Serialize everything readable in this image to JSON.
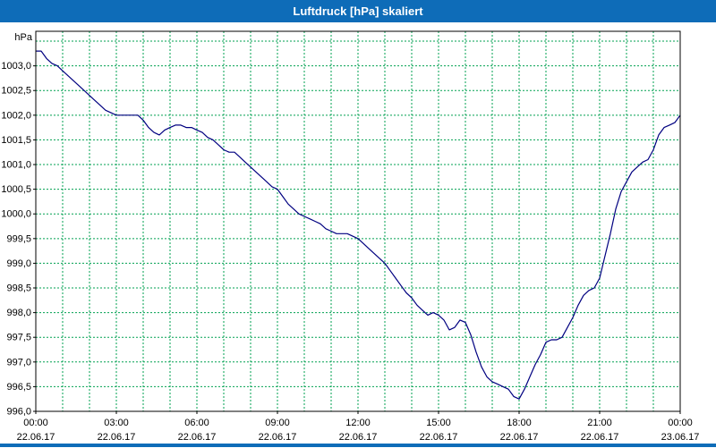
{
  "window": {
    "title": "Luftdruck [hPa] skaliert"
  },
  "chart_data": {
    "type": "line",
    "title": "Luftdruck [hPa] skaliert",
    "ylabel": "hPa",
    "xlabel": "",
    "xlim": [
      0,
      24
    ],
    "ylim": [
      996.0,
      1003.7
    ],
    "grid": true,
    "legend": "none",
    "y_grid_step": 0.5,
    "x_grid_step_hours": 1,
    "colors": {
      "titlebar": "#0e6cb8",
      "grid": "#00a050",
      "line": "#000080",
      "frame": "#000000",
      "background": "#ffffff",
      "label_text": "#000000"
    },
    "y_ticks": {
      "values": [
        1003.0,
        1002.5,
        1002.0,
        1001.5,
        1001.0,
        1000.5,
        1000.0,
        999.5,
        999.0,
        998.5,
        998.0,
        997.5,
        997.0,
        996.5,
        996.0
      ],
      "labels": [
        "1003,0",
        "1002,5",
        "1002,0",
        "1001,5",
        "1001,0",
        "1000,5",
        "1000,0",
        "999,5",
        "999,0",
        "998,5",
        "998,0",
        "997,5",
        "997,0",
        "996,5",
        "996,0"
      ]
    },
    "x_ticks": {
      "hours": [
        0,
        3,
        6,
        9,
        12,
        15,
        18,
        21,
        24
      ],
      "times": [
        "00:00",
        "03:00",
        "06:00",
        "09:00",
        "12:00",
        "15:00",
        "18:00",
        "21:00",
        "00:00"
      ],
      "dates": [
        "22.06.17",
        "22.06.17",
        "22.06.17",
        "22.06.17",
        "22.06.17",
        "22.06.17",
        "22.06.17",
        "22.06.17",
        "23.06.17"
      ]
    },
    "series": [
      {
        "name": "Luftdruck [hPa]",
        "x": [
          0.0,
          0.2,
          0.4,
          0.6,
          0.8,
          1.0,
          1.2,
          1.4,
          1.6,
          1.8,
          2.0,
          2.2,
          2.4,
          2.6,
          2.8,
          3.0,
          3.2,
          3.4,
          3.6,
          3.8,
          4.0,
          4.2,
          4.4,
          4.6,
          4.8,
          5.0,
          5.2,
          5.4,
          5.6,
          5.8,
          6.0,
          6.2,
          6.4,
          6.6,
          6.8,
          7.0,
          7.2,
          7.4,
          7.6,
          7.8,
          8.0,
          8.2,
          8.4,
          8.6,
          8.8,
          9.0,
          9.2,
          9.4,
          9.6,
          9.8,
          10.0,
          10.2,
          10.4,
          10.6,
          10.8,
          11.0,
          11.2,
          11.4,
          11.6,
          11.8,
          12.0,
          12.2,
          12.4,
          12.6,
          12.8,
          13.0,
          13.2,
          13.4,
          13.6,
          13.8,
          14.0,
          14.2,
          14.4,
          14.6,
          14.8,
          15.0,
          15.2,
          15.4,
          15.6,
          15.8,
          16.0,
          16.2,
          16.4,
          16.6,
          16.8,
          17.0,
          17.2,
          17.4,
          17.6,
          17.8,
          18.0,
          18.2,
          18.4,
          18.6,
          18.8,
          19.0,
          19.2,
          19.4,
          19.6,
          19.8,
          20.0,
          20.2,
          20.4,
          20.6,
          20.8,
          21.0,
          21.2,
          21.4,
          21.6,
          21.8,
          22.0,
          22.2,
          22.4,
          22.6,
          22.8,
          23.0,
          23.2,
          23.4,
          23.6,
          23.8,
          24.0
        ],
        "y": [
          1003.3,
          1003.3,
          1003.15,
          1003.05,
          1003.0,
          1002.9,
          1002.8,
          1002.7,
          1002.6,
          1002.5,
          1002.4,
          1002.3,
          1002.2,
          1002.1,
          1002.05,
          1002.0,
          1002.0,
          1002.0,
          1002.0,
          1002.0,
          1001.9,
          1001.75,
          1001.65,
          1001.6,
          1001.7,
          1001.75,
          1001.8,
          1001.8,
          1001.75,
          1001.75,
          1001.7,
          1001.65,
          1001.55,
          1001.5,
          1001.4,
          1001.3,
          1001.25,
          1001.25,
          1001.15,
          1001.05,
          1000.95,
          1000.85,
          1000.75,
          1000.65,
          1000.55,
          1000.5,
          1000.35,
          1000.2,
          1000.1,
          1000.0,
          999.95,
          999.9,
          999.85,
          999.8,
          999.7,
          999.65,
          999.6,
          999.6,
          999.6,
          999.55,
          999.5,
          999.4,
          999.3,
          999.2,
          999.1,
          999.0,
          998.85,
          998.7,
          998.55,
          998.4,
          998.3,
          998.15,
          998.05,
          997.95,
          998.0,
          997.95,
          997.85,
          997.65,
          997.7,
          997.85,
          997.8,
          997.55,
          997.2,
          996.9,
          996.7,
          996.6,
          996.55,
          996.5,
          996.45,
          996.3,
          996.25,
          996.45,
          996.7,
          996.95,
          997.15,
          997.4,
          997.45,
          997.45,
          997.5,
          997.7,
          997.9,
          998.15,
          998.35,
          998.45,
          998.5,
          998.7,
          999.15,
          999.6,
          1000.1,
          1000.45,
          1000.65,
          1000.85,
          1000.95,
          1001.05,
          1001.1,
          1001.3,
          1001.6,
          1001.75,
          1001.8,
          1001.85,
          1002.0
        ]
      }
    ]
  }
}
